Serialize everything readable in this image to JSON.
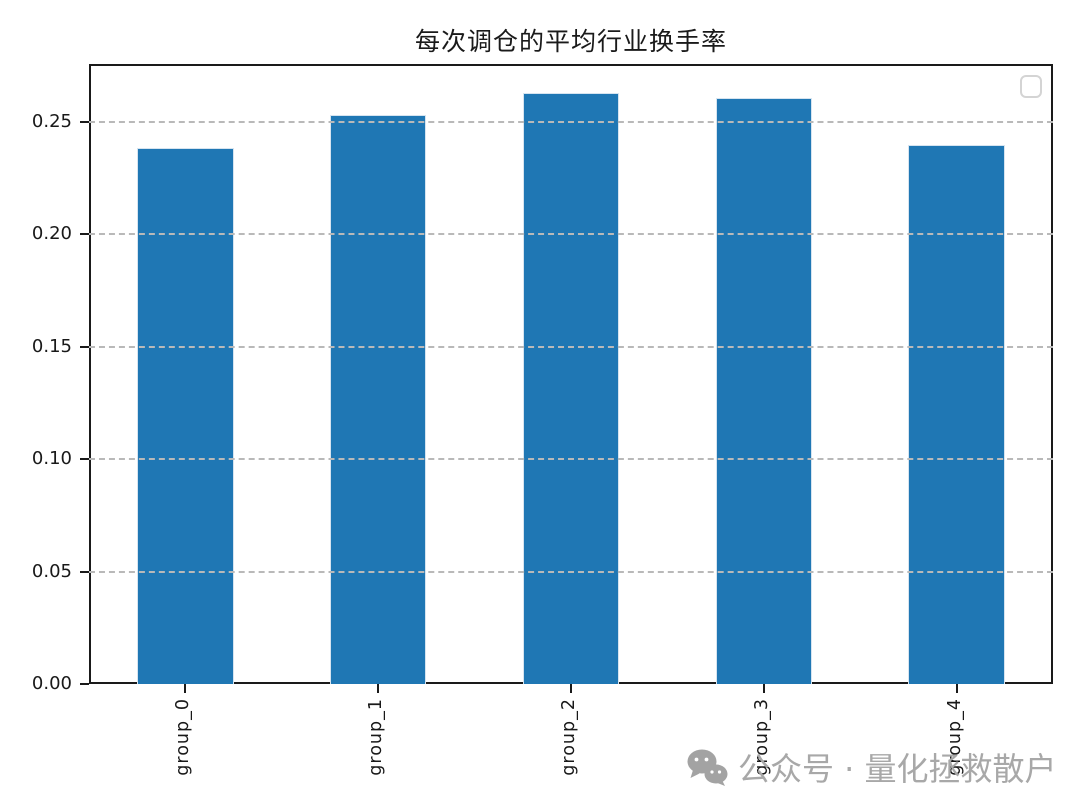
{
  "chart_data": {
    "type": "bar",
    "title": "每次调仓的平均行业换手率",
    "categories": [
      "group_0",
      "group_1",
      "group_2",
      "group_3",
      "group_4"
    ],
    "values": [
      0.2382,
      0.2531,
      0.2629,
      0.2607,
      0.2399
    ],
    "xlabel": "",
    "ylabel": "",
    "ylim": [
      0,
      0.2757
    ],
    "yticks": [
      "0.00",
      "0.05",
      "0.10",
      "0.15",
      "0.20",
      "0.25"
    ],
    "grid": "horizontal dashed, drawn above bars",
    "legend": "empty frame, top-right inside axes",
    "bar_color": "#1f77b4",
    "bar_edge_color": "#d6e4f0",
    "grid_color": "#b9b9b9",
    "spine_color": "#1a1a1a",
    "bar_width_fraction": 0.5
  },
  "watermark": {
    "icon": "wechat-icon",
    "text": "公众号 · 量化拯救散户",
    "color": "#a8a8a8"
  }
}
